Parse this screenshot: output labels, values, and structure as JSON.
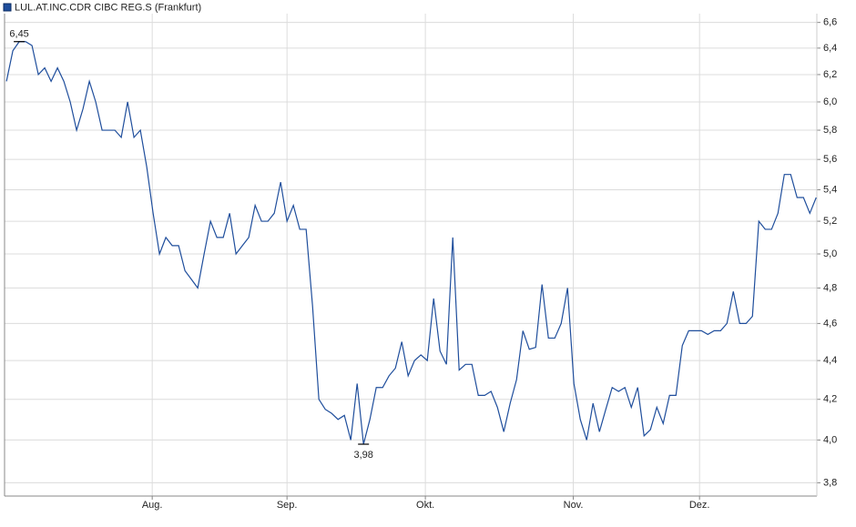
{
  "chart_data": {
    "type": "line",
    "legend": "LUL.AT.INC.CDR CIBC REG.S (Frankfurt)",
    "yscale": "log",
    "grid": true,
    "x": [
      0,
      1,
      2,
      3,
      4,
      5,
      6,
      7,
      8,
      9,
      10,
      11,
      12,
      13,
      14,
      15,
      16,
      17,
      18,
      19,
      20,
      21,
      22,
      23,
      24,
      25,
      26,
      27,
      28,
      29,
      30,
      31,
      32,
      33,
      34,
      35,
      36,
      37,
      38,
      39,
      40,
      41,
      42,
      43,
      44,
      45,
      46,
      47,
      48,
      49,
      50,
      51,
      52,
      53,
      54,
      55,
      56,
      57,
      58,
      59,
      60,
      61,
      62,
      63,
      64,
      65,
      66,
      67,
      68,
      69,
      70,
      71,
      72,
      73,
      74,
      75,
      76,
      77,
      78,
      79,
      80,
      81,
      82,
      83,
      84,
      85,
      86,
      87,
      88,
      89,
      90,
      91,
      92,
      93,
      94,
      95,
      96,
      97,
      98,
      99,
      100,
      101,
      102,
      103,
      104,
      105,
      106,
      107,
      108,
      109,
      110,
      111,
      112,
      113,
      114,
      115,
      116,
      117,
      118,
      119,
      120,
      121,
      122,
      123,
      124,
      125,
      126,
      127
    ],
    "series": [
      {
        "color": "#1f4e9c",
        "values": [
          6.15,
          6.38,
          6.45,
          6.45,
          6.42,
          6.2,
          6.25,
          6.15,
          6.25,
          6.15,
          6.0,
          5.8,
          5.95,
          6.15,
          6.0,
          5.8,
          5.8,
          5.8,
          5.75,
          6.0,
          5.75,
          5.8,
          5.55,
          5.25,
          5.0,
          5.1,
          5.05,
          5.05,
          4.9,
          4.85,
          4.8,
          5.0,
          5.2,
          5.1,
          5.1,
          5.25,
          5.0,
          5.05,
          5.1,
          5.3,
          5.2,
          5.2,
          5.25,
          5.45,
          5.2,
          5.3,
          5.15,
          5.15,
          4.7,
          4.2,
          4.15,
          4.13,
          4.1,
          4.12,
          4.0,
          4.28,
          3.98,
          4.1,
          4.26,
          4.26,
          4.32,
          4.36,
          4.5,
          4.32,
          4.4,
          4.43,
          4.4,
          4.74,
          4.45,
          4.38,
          5.1,
          4.35,
          4.38,
          4.38,
          4.22,
          4.22,
          4.24,
          4.16,
          4.04,
          4.18,
          4.3,
          4.56,
          4.46,
          4.47,
          4.82,
          4.52,
          4.52,
          4.6,
          4.8,
          4.28,
          4.1,
          4.0,
          4.18,
          4.04,
          4.15,
          4.26,
          4.24,
          4.26,
          4.16,
          4.26,
          4.02,
          4.05,
          4.16,
          4.08,
          4.22,
          4.22,
          4.48,
          4.56,
          4.56,
          4.56,
          4.54,
          4.56,
          4.56,
          4.6,
          4.78,
          4.6,
          4.6,
          4.64,
          5.2,
          5.15,
          5.15,
          5.25,
          5.5,
          5.5,
          5.35,
          5.35,
          5.25,
          5.35
        ]
      }
    ],
    "xlim": [
      -0.3,
      127.1
    ],
    "xticks": [
      {
        "value": 22.86,
        "label": "Aug."
      },
      {
        "value": 44,
        "label": "Sep."
      },
      {
        "value": 65.7,
        "label": "Okt."
      },
      {
        "value": 88.9,
        "label": "Nov."
      },
      {
        "value": 108.7,
        "label": "Dez."
      }
    ],
    "ylim": [
      3.74,
      6.67
    ],
    "yticks": [
      {
        "value": 3.8,
        "label": "3,8"
      },
      {
        "value": 4.0,
        "label": "4,0"
      },
      {
        "value": 4.2,
        "label": "4,2"
      },
      {
        "value": 4.4,
        "label": "4,4"
      },
      {
        "value": 4.6,
        "label": "4,6"
      },
      {
        "value": 4.8,
        "label": "4,8"
      },
      {
        "value": 5.0,
        "label": "5,0"
      },
      {
        "value": 5.2,
        "label": "5,2"
      },
      {
        "value": 5.4,
        "label": "5,4"
      },
      {
        "value": 5.6,
        "label": "5,6"
      },
      {
        "value": 5.8,
        "label": "5,8"
      },
      {
        "value": 6.0,
        "label": "6,0"
      },
      {
        "value": 6.2,
        "label": "6,2"
      },
      {
        "value": 6.4,
        "label": "6,4"
      },
      {
        "value": 6.6,
        "label": "6,6"
      }
    ],
    "annotations": [
      {
        "text": "6,45",
        "x": 2,
        "y": 6.45,
        "position": "above"
      },
      {
        "text": "3,98",
        "x": 56,
        "y": 3.98,
        "position": "below"
      }
    ]
  }
}
